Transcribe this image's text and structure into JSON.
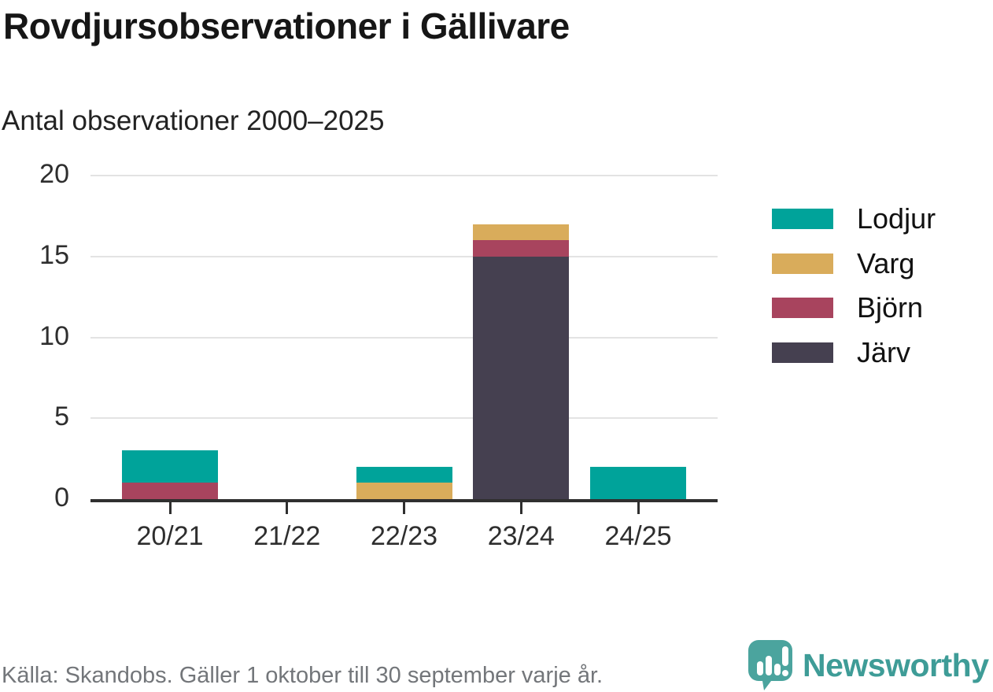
{
  "header": {
    "title": "Rovdjursobservationer i Gällivare",
    "subtitle": "Antal observationer 2000–2025"
  },
  "chart_data": {
    "type": "bar",
    "stacked": true,
    "title": "Rovdjursobservationer i Gällivare",
    "subtitle": "Antal observationer 2000–2025",
    "categories": [
      "20/21",
      "21/22",
      "22/23",
      "23/24",
      "24/25"
    ],
    "series": [
      {
        "name": "Lodjur",
        "color": "#00A39A",
        "values": [
          2,
          0,
          1,
          0,
          2
        ]
      },
      {
        "name": "Varg",
        "color": "#D9AC5B",
        "values": [
          0,
          0,
          1,
          1,
          0
        ]
      },
      {
        "name": "Björn",
        "color": "#A8445E",
        "values": [
          1,
          0,
          0,
          1,
          0
        ]
      },
      {
        "name": "Järv",
        "color": "#454050",
        "values": [
          0,
          0,
          0,
          15,
          0
        ]
      }
    ],
    "totals": [
      3,
      0,
      2,
      17,
      2
    ],
    "stack_order_bottom_to_top": [
      "Järv",
      "Björn",
      "Varg",
      "Lodjur"
    ],
    "xlabel": "",
    "ylabel": "",
    "ylim": [
      0,
      20
    ],
    "yticks": [
      0,
      5,
      10,
      15,
      20
    ],
    "grid": true,
    "legend_position": "right",
    "axis_color": "#2f2f2f",
    "gridline_color": "#e3e3e3"
  },
  "legend": {
    "items": [
      {
        "label": "Lodjur",
        "color": "#00A39A"
      },
      {
        "label": "Varg",
        "color": "#D9AC5B"
      },
      {
        "label": "Björn",
        "color": "#A8445E"
      },
      {
        "label": "Järv",
        "color": "#454050"
      }
    ]
  },
  "footer": {
    "source": "Källa: Skandobs. Gäller 1 oktober till 30 september varje år.",
    "brand": "Newsworthy",
    "brand_color": "#3e9c97"
  }
}
